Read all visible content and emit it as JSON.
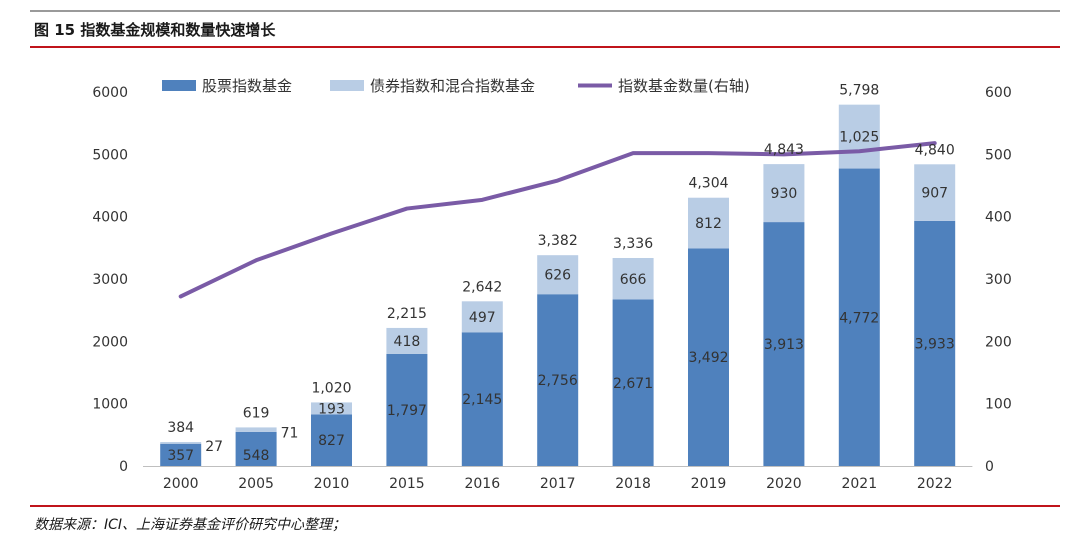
{
  "figure_title": "图 15 指数基金规模和数量快速增长",
  "source_note": "数据来源：ICI、上海证券基金评价研究中心整理；",
  "colors": {
    "series_a": "#4f81bd",
    "series_b": "#b9cde5",
    "line": "#7a5ba6",
    "rule_red": "#c0141b",
    "rule_gray": "#9a9a9a",
    "axis_text": "#333333"
  },
  "chart_data": {
    "type": "bar",
    "stacked": true,
    "categories": [
      "2000",
      "2005",
      "2010",
      "2015",
      "2016",
      "2017",
      "2018",
      "2019",
      "2020",
      "2021",
      "2022"
    ],
    "series": [
      {
        "name": "股票指数基金",
        "values": [
          357,
          548,
          827,
          1797,
          2145,
          2756,
          2671,
          3492,
          3913,
          4772,
          3933
        ]
      },
      {
        "name": "债券指数和混合指数基金",
        "values": [
          27,
          71,
          193,
          418,
          497,
          626,
          666,
          812,
          930,
          1025,
          907
        ]
      }
    ],
    "totals": [
      384,
      619,
      1020,
      2215,
      2642,
      3382,
      3336,
      4304,
      4843,
      5798,
      4840
    ],
    "value_labels": {
      "series_a": [
        "357",
        "548",
        "827",
        "1,797",
        "2,145",
        "2,756",
        "2,671",
        "3,492",
        "3,913",
        "4,772",
        "3,933"
      ],
      "series_b": [
        "27",
        "71",
        "193",
        "418",
        "497",
        "626",
        "666",
        "812",
        "930",
        "1,025",
        "907"
      ],
      "totals": [
        "384",
        "619",
        "1,020",
        "2,215",
        "2,642",
        "3,382",
        "3,336",
        "4,304",
        "4,843",
        "5,798",
        "4,840"
      ]
    },
    "line_series": {
      "name": "指数基金数量(右轴)",
      "axis": "right",
      "values": [
        272,
        330,
        373,
        413,
        427,
        458,
        502,
        502,
        500,
        505,
        518
      ]
    },
    "y_left": {
      "min": 0,
      "max": 6000,
      "ticks": [
        "0",
        "1000",
        "2000",
        "3000",
        "4000",
        "5000",
        "6000"
      ]
    },
    "y_right": {
      "min": 0,
      "max": 600,
      "ticks": [
        "0",
        "100",
        "200",
        "300",
        "400",
        "500",
        "600"
      ]
    },
    "legend_position": "top",
    "grid": false
  }
}
